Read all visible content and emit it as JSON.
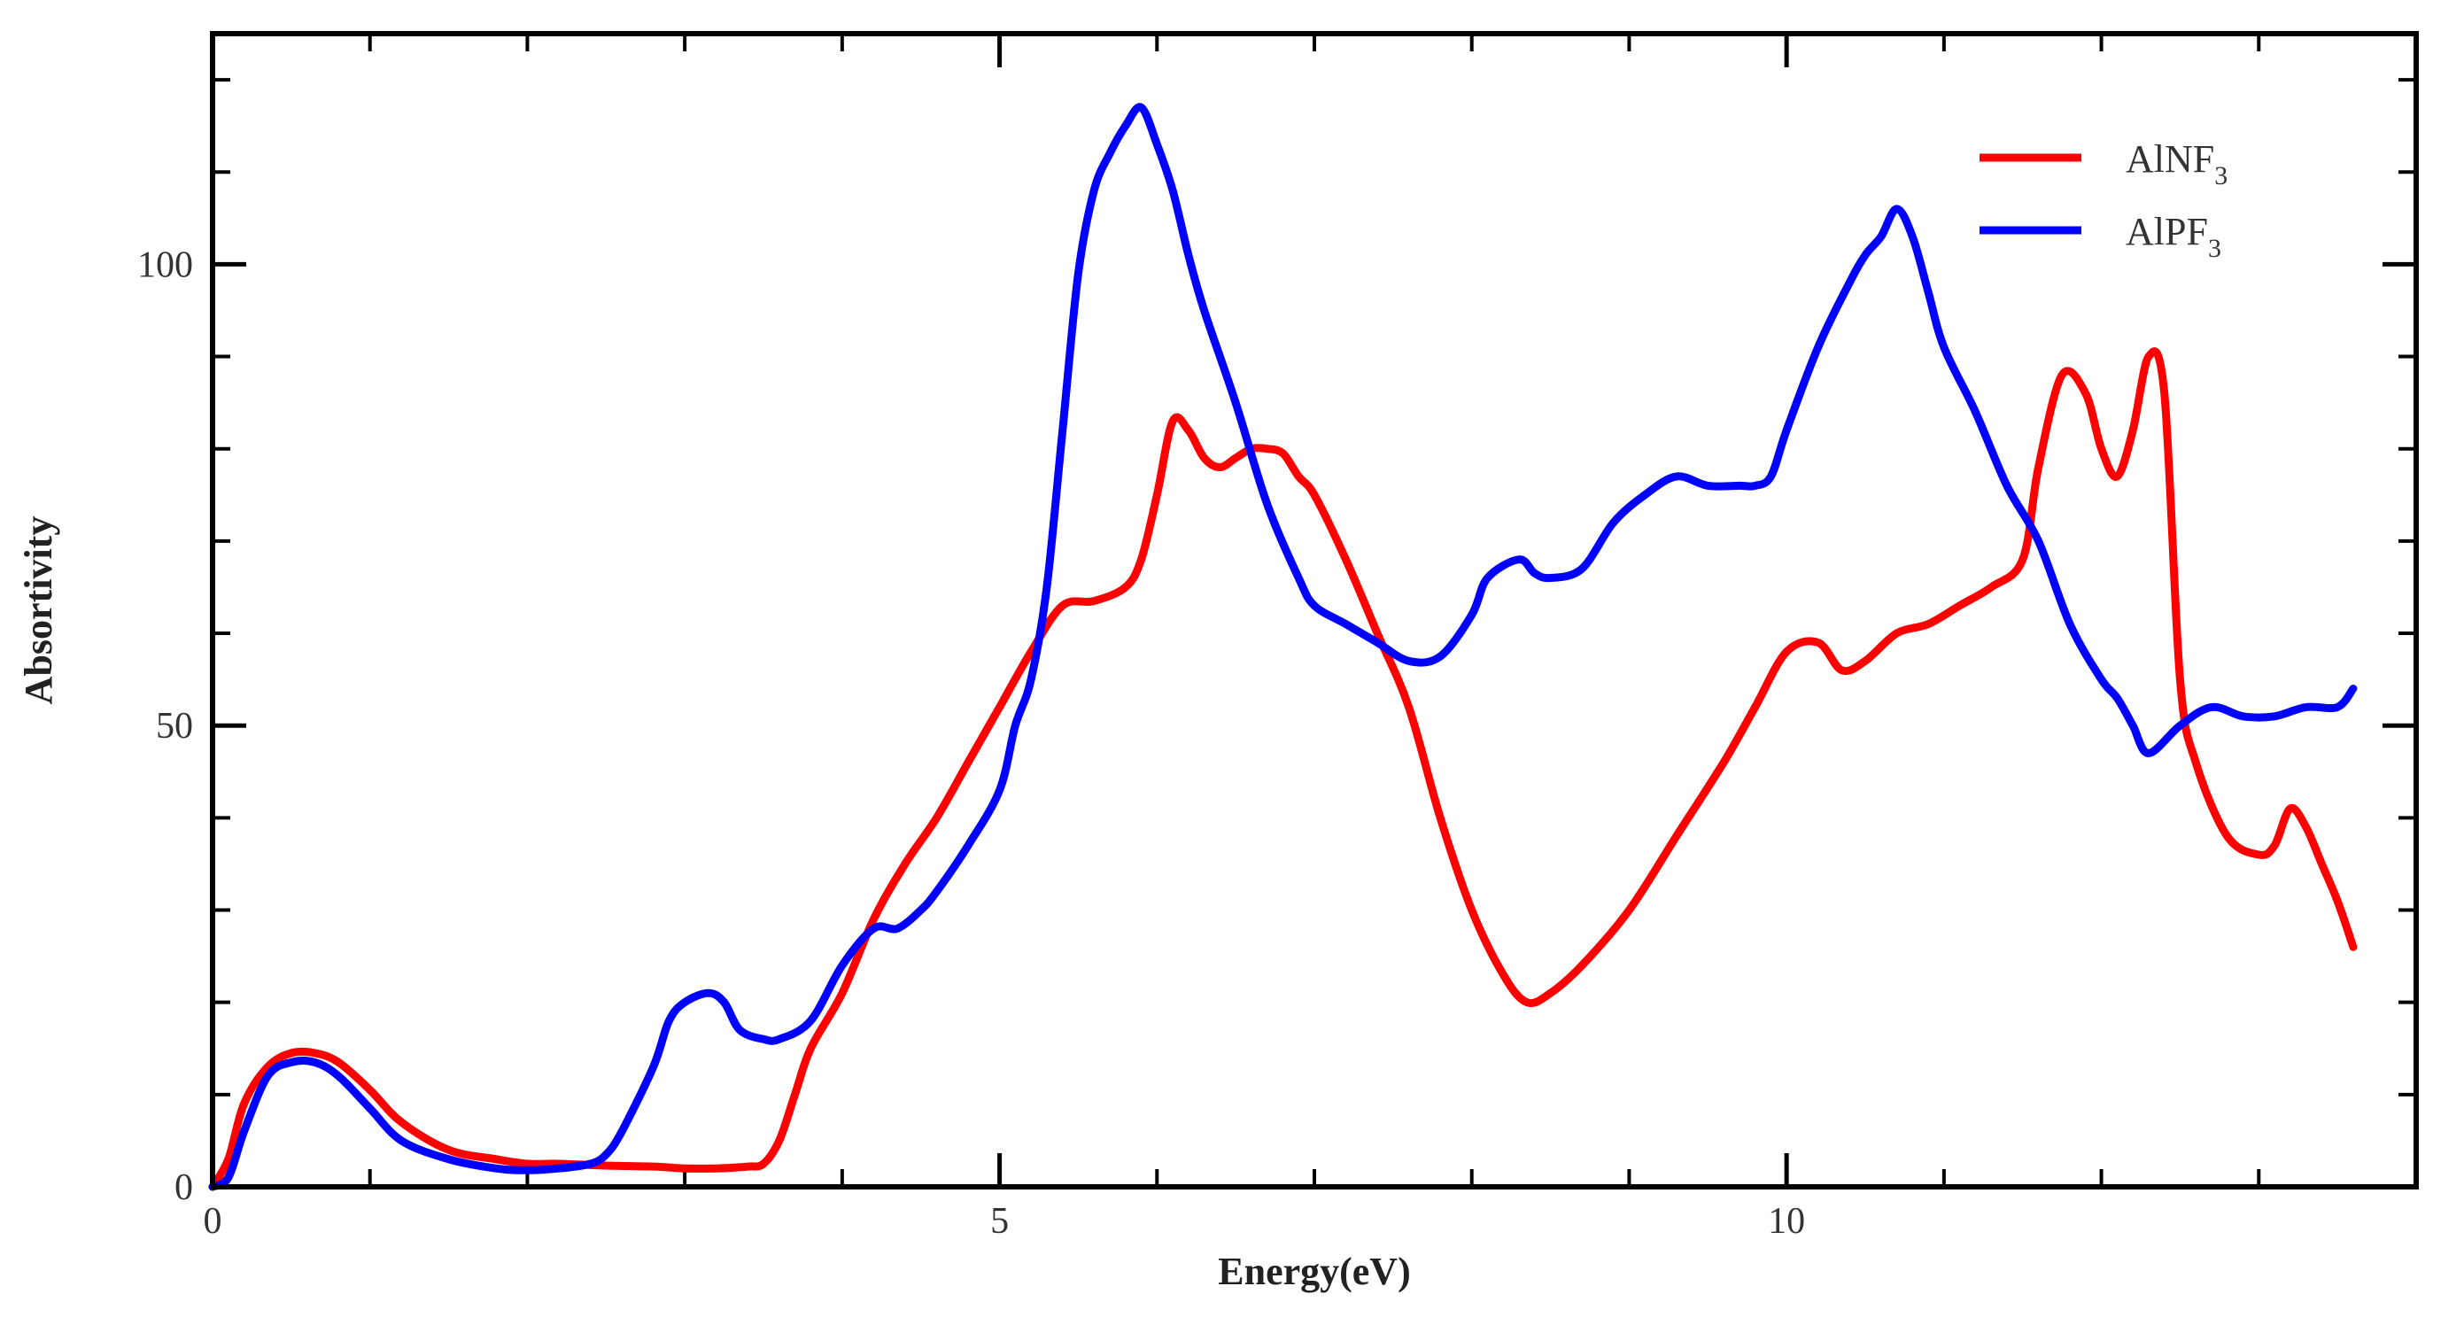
{
  "chart_data": {
    "type": "line",
    "title": "",
    "xlabel": "Energy(eV)",
    "ylabel": "Absortivity",
    "xlim": [
      0,
      14
    ],
    "ylim": [
      0,
      125
    ],
    "xticks": [
      0,
      5,
      10
    ],
    "xtick_labels": [
      "0",
      "5",
      "10"
    ],
    "yticks": [
      0,
      50,
      100
    ],
    "ytick_labels": [
      "0",
      "50",
      "100"
    ],
    "x_minor_step": 1,
    "y_minor_step": 10,
    "grid": false,
    "legend_position": "top-right",
    "series": [
      {
        "name": "AlNF3",
        "label_main": "AlNF",
        "label_sub": "3",
        "color": "#ff0000",
        "x": [
          0,
          0.1,
          0.2,
          0.35,
          0.5,
          0.65,
          0.8,
          1.0,
          1.2,
          1.5,
          1.8,
          2.0,
          2.2,
          2.5,
          2.8,
          3.0,
          3.2,
          3.4,
          3.5,
          3.6,
          3.7,
          3.8,
          4.0,
          4.2,
          4.4,
          4.6,
          4.8,
          5.0,
          5.2,
          5.4,
          5.6,
          5.8,
          5.9,
          6.0,
          6.1,
          6.2,
          6.3,
          6.4,
          6.5,
          6.6,
          6.7,
          6.8,
          6.9,
          7.0,
          7.2,
          7.4,
          7.6,
          7.8,
          8.0,
          8.2,
          8.35,
          8.5,
          8.7,
          9.0,
          9.3,
          9.6,
          9.8,
          10.0,
          10.2,
          10.35,
          10.5,
          10.7,
          10.9,
          11.1,
          11.3,
          11.5,
          11.6,
          11.75,
          11.9,
          12.0,
          12.1,
          12.2,
          12.3,
          12.4,
          12.5,
          12.6,
          12.8,
          13.0,
          13.1,
          13.2,
          13.3,
          13.4,
          13.5,
          13.6
        ],
        "y": [
          0,
          3,
          9,
          13,
          14.5,
          14.5,
          13.5,
          10.5,
          7,
          4,
          3,
          2.5,
          2.5,
          2.3,
          2.2,
          2,
          2,
          2.2,
          2.5,
          5,
          10,
          15,
          21,
          29,
          35,
          40,
          46,
          52,
          58,
          63,
          63.5,
          65,
          68,
          75,
          83,
          82,
          79,
          78,
          79,
          80,
          80,
          79.5,
          77,
          75,
          68,
          60,
          52,
          40,
          30,
          23,
          20,
          21,
          24,
          30,
          38,
          46,
          52,
          58,
          59,
          56,
          57,
          60,
          61,
          63,
          65,
          68,
          78,
          88,
          86,
          80,
          77,
          82,
          90,
          86,
          55,
          46,
          38,
          36,
          37,
          41,
          39,
          35,
          31,
          26
        ]
      },
      {
        "name": "AlPF3",
        "label_main": "AlPF",
        "label_sub": "3",
        "color": "#0000ff",
        "x": [
          0,
          0.1,
          0.2,
          0.35,
          0.5,
          0.65,
          0.8,
          1.0,
          1.2,
          1.5,
          1.8,
          2.0,
          2.2,
          2.4,
          2.5,
          2.6,
          2.8,
          2.9,
          3.0,
          3.15,
          3.25,
          3.35,
          3.5,
          3.6,
          3.8,
          4.0,
          4.2,
          4.35,
          4.5,
          4.6,
          4.8,
          5.0,
          5.1,
          5.2,
          5.3,
          5.4,
          5.5,
          5.6,
          5.7,
          5.8,
          5.9,
          6.0,
          6.1,
          6.2,
          6.3,
          6.5,
          6.7,
          6.9,
          7.0,
          7.2,
          7.4,
          7.6,
          7.8,
          8.0,
          8.1,
          8.3,
          8.4,
          8.5,
          8.7,
          8.9,
          9.1,
          9.3,
          9.5,
          9.7,
          9.8,
          9.9,
          10.0,
          10.2,
          10.4,
          10.5,
          10.6,
          10.7,
          10.8,
          10.9,
          11.0,
          11.2,
          11.4,
          11.6,
          11.8,
          12.0,
          12.1,
          12.2,
          12.3,
          12.5,
          12.7,
          12.9,
          13.1,
          13.3,
          13.5,
          13.6
        ],
        "y": [
          0,
          1,
          6,
          12,
          13.5,
          13.5,
          12,
          8.5,
          5,
          3,
          2,
          1.8,
          2,
          2.5,
          3.5,
          6,
          13,
          18,
          20,
          21,
          20,
          17,
          16,
          16,
          18,
          24,
          28,
          28,
          30,
          32,
          37,
          43,
          50,
          55,
          65,
          82,
          99,
          108,
          112,
          115,
          117,
          113,
          108,
          101,
          95,
          85,
          74,
          66,
          63,
          61,
          59,
          57,
          57.5,
          62,
          66,
          68,
          66.5,
          66,
          67,
          72,
          75,
          77,
          76,
          76,
          76,
          77,
          82,
          91,
          98,
          101,
          103,
          106,
          103,
          97,
          91,
          84,
          76,
          70,
          61,
          55,
          53,
          50,
          47,
          50,
          52,
          51,
          51,
          52,
          52,
          54
        ]
      }
    ]
  }
}
